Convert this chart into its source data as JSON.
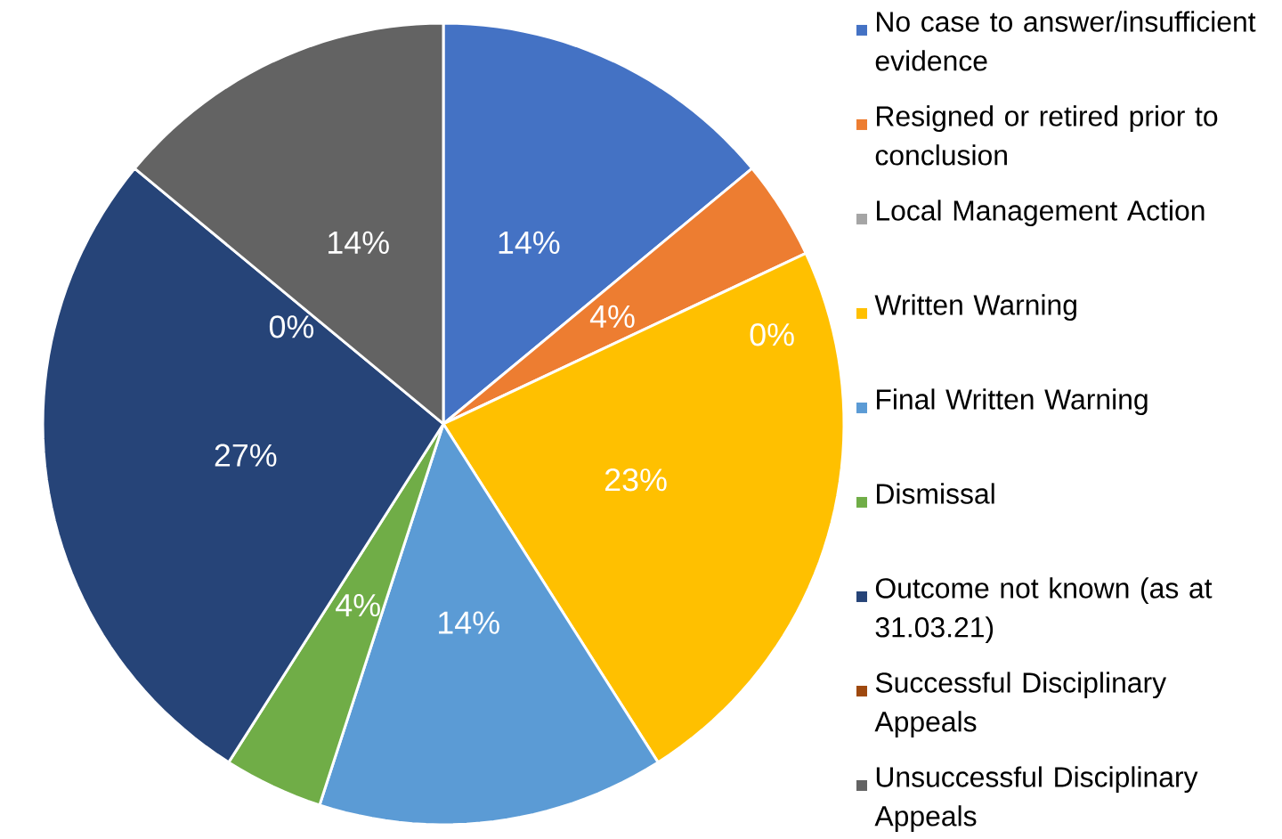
{
  "chart_data": {
    "type": "pie",
    "categories": [
      "No case to answer/insufficient evidence",
      "Resigned or retired prior to conclusion",
      "Local Management Action",
      "Written Warning",
      "Final Written Warning",
      "Dismissal",
      "Outcome not known (as at 31.03.21)",
      "Successful Disciplinary Appeals",
      "Unsuccessful Disciplinary Appeals"
    ],
    "values": [
      14,
      4,
      0,
      23,
      14,
      4,
      27,
      0,
      14
    ],
    "value_labels": [
      "14%",
      "4%",
      "0%",
      "23%",
      "14%",
      "4%",
      "27%",
      "0%",
      "14%"
    ],
    "colors": [
      "#4472c4",
      "#ed7d31",
      "#a5a5a5",
      "#ffc000",
      "#5b9bd5",
      "#70ad47",
      "#264478",
      "#9e480e",
      "#636363"
    ],
    "legend": "right"
  }
}
